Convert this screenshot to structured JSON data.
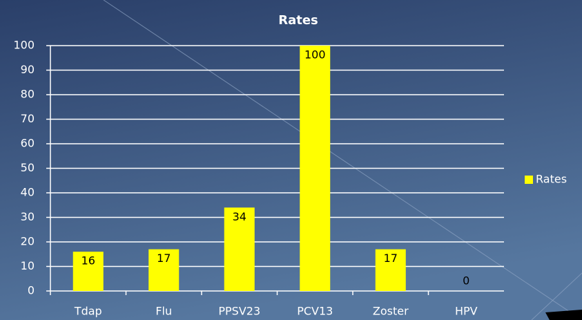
{
  "chart_data": {
    "type": "bar",
    "title": "Rates",
    "categories": [
      "Tdap",
      "Flu",
      "PPSV23",
      "PCV13",
      "Zoster",
      "HPV"
    ],
    "series": [
      {
        "name": "Rates",
        "color": "#ffff00",
        "values": [
          16,
          17,
          34,
          100,
          17,
          0
        ]
      }
    ],
    "ylim": [
      0,
      100
    ],
    "yticks": [
      0,
      10,
      20,
      30,
      40,
      50,
      60,
      70,
      80,
      90,
      100
    ],
    "grid": true,
    "legend": "right"
  }
}
